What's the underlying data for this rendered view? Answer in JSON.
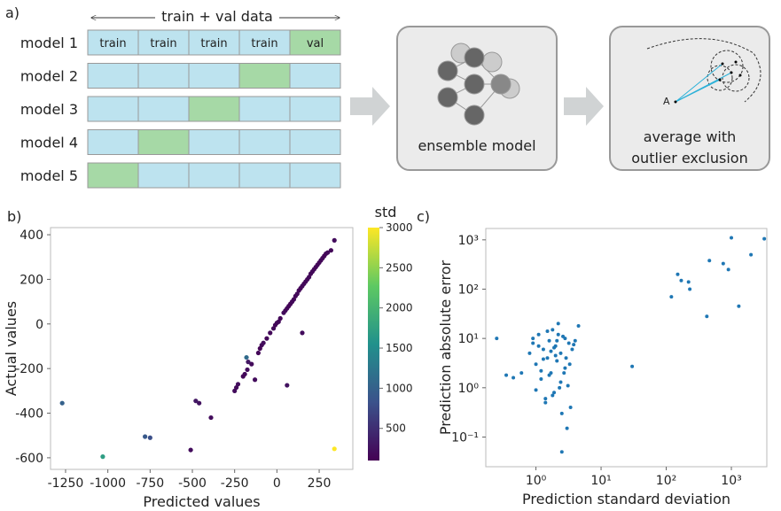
{
  "diagram": {
    "panel": "a)",
    "span": "train + val data",
    "models": [
      "model 1",
      "model 2",
      "model 3",
      "model 4",
      "model 5"
    ],
    "row1": [
      "train",
      "train",
      "train",
      "train",
      "val"
    ],
    "box1": "ensemble model",
    "box2": [
      "average with",
      "outlier exclusion"
    ],
    "point": "A"
  },
  "chart_data": [
    {
      "type": "scatter",
      "panel": "b)",
      "xlabel": "Predicted values",
      "ylabel": "Actual values",
      "xlim": [
        -1339,
        449
      ],
      "ylim": [
        -652,
        432
      ],
      "xticks": [
        -1250,
        -1000,
        -750,
        -500,
        -250,
        0,
        250
      ],
      "yticks": [
        -600,
        -400,
        -200,
        0,
        200,
        400
      ],
      "colorbar_label": "std",
      "colormap": "viridis",
      "clim": [
        100,
        3000
      ],
      "cticks": [
        500,
        1000,
        1500,
        2000,
        2500,
        3000
      ],
      "x": [
        -250,
        -240,
        -230,
        -200,
        -190,
        -175,
        -150,
        -110,
        -100,
        -90,
        -80,
        -60,
        -40,
        -20,
        -10,
        0,
        10,
        20,
        40,
        50,
        60,
        70,
        80,
        90,
        100,
        110,
        120,
        130,
        140,
        150,
        160,
        170,
        180,
        190,
        200,
        210,
        220,
        230,
        240,
        250,
        260,
        270,
        280,
        290,
        300,
        320,
        340,
        -1270,
        -1030,
        -780,
        -750,
        -480,
        -460,
        -510,
        -390,
        -180,
        -170,
        -130,
        60,
        150,
        340
      ],
      "values": [
        -300,
        -285,
        -270,
        -235,
        -225,
        -205,
        -180,
        -130,
        -110,
        -95,
        -85,
        -65,
        -40,
        -20,
        -5,
        5,
        10,
        25,
        50,
        60,
        70,
        80,
        90,
        100,
        110,
        125,
        135,
        150,
        160,
        170,
        180,
        190,
        200,
        210,
        225,
        235,
        245,
        255,
        265,
        275,
        285,
        295,
        305,
        315,
        320,
        330,
        375,
        -355,
        -595,
        -505,
        -510,
        -345,
        -355,
        -565,
        -420,
        -150,
        -170,
        -250,
        -275,
        -40,
        -560
      ],
      "color_values": [
        200,
        180,
        220,
        150,
        160,
        200,
        180,
        150,
        140,
        160,
        200,
        150,
        170,
        180,
        150,
        160,
        170,
        150,
        200,
        180,
        160,
        150,
        140,
        170,
        150,
        160,
        180,
        150,
        140,
        160,
        170,
        150,
        160,
        180,
        150,
        160,
        170,
        150,
        160,
        170,
        150,
        160,
        140,
        150,
        170,
        160,
        200,
        1000,
        1700,
        900,
        800,
        300,
        250,
        200,
        200,
        1100,
        300,
        200,
        250,
        200,
        3000
      ]
    },
    {
      "type": "scatter",
      "panel": "c)",
      "xlabel": "Prediction standard deviation",
      "ylabel": "Prediction absolute error",
      "xscale": "log",
      "yscale": "log",
      "color": "#1f77b4",
      "xlim": [
        0.17,
        3500
      ],
      "ylim": [
        0.025,
        1700
      ],
      "xticks": [
        {
          "value": 1,
          "label": "10⁰"
        },
        {
          "value": 10,
          "label": "10¹"
        },
        {
          "value": 100,
          "label": "10²"
        },
        {
          "value": 1000,
          "label": "10³"
        }
      ],
      "yticks": [
        {
          "value": 0.1,
          "label": "10⁻¹"
        },
        {
          "value": 1,
          "label": "10⁰"
        },
        {
          "value": 10,
          "label": "10¹"
        },
        {
          "value": 100,
          "label": "10²"
        },
        {
          "value": 1000,
          "label": "10³"
        }
      ],
      "x": [
        0.25,
        0.35,
        0.45,
        0.6,
        2.5,
        3,
        30,
        120,
        150,
        170,
        220,
        230,
        420,
        460,
        750,
        900,
        1000,
        1300,
        2000,
        3200,
        0.8,
        0.9,
        1,
        1.1,
        1.2,
        1.3,
        1.4,
        1.5,
        1.6,
        1.7,
        1.8,
        1.9,
        2,
        2.1,
        2.2,
        2.3,
        2.4,
        2.6,
        2.8,
        3.2,
        3.4,
        3.6,
        4,
        4.5,
        1,
        1.2,
        1.5,
        1.8,
        2,
        2.4,
        2.8,
        3.3,
        1.1,
        1.4,
        1.7,
        2.2,
        2.7,
        3.1,
        0.9,
        1.3,
        1.9,
        2.5,
        3.8,
        1.6,
        2.1,
        2.9
      ],
      "values": [
        10,
        1.8,
        1.6,
        2,
        0.05,
        0.15,
        2.7,
        70,
        200,
        150,
        140,
        100,
        28,
        380,
        330,
        250,
        1100,
        45,
        500,
        1050,
        5,
        8,
        3,
        12,
        1.5,
        6,
        0.6,
        4,
        9,
        2,
        15,
        0.8,
        7,
        3.5,
        20,
        1,
        5,
        11,
        2.5,
        8,
        0.4,
        6,
        9,
        18,
        0.9,
        2.2,
        14,
        0.7,
        4.5,
        1.3,
        10,
        3,
        7,
        0.5,
        5.5,
        12,
        2,
        1.1,
        10,
        3.8,
        6.5,
        0.3,
        7.5,
        1.8,
        9,
        4
      ]
    }
  ]
}
